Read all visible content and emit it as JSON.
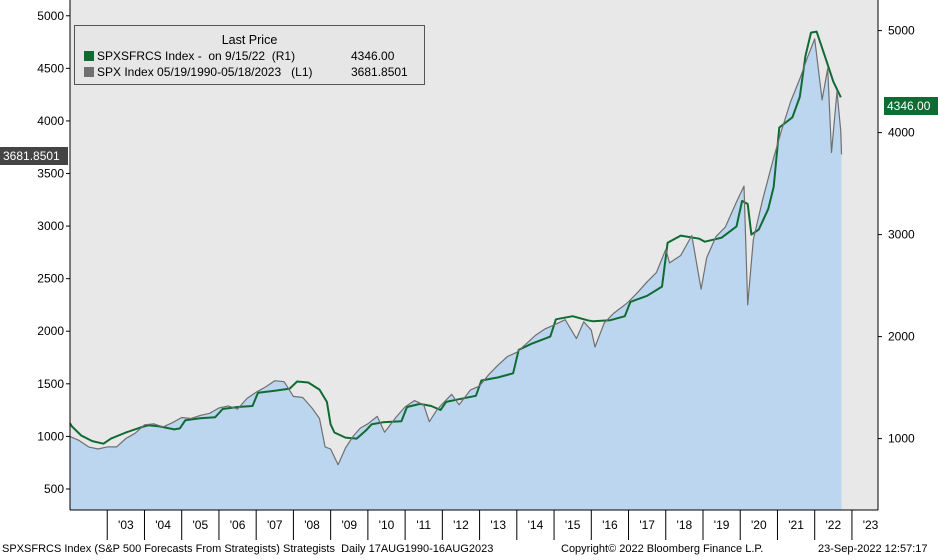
{
  "legend": {
    "title": "Last Price",
    "rows": [
      {
        "label": "SPXSFRCS Index -  on 9/15/22  (R1)",
        "value": "4346.00",
        "color": "#0f6b32"
      },
      {
        "label": "SPX Index 05/19/1990-05/18/2023   (L1)",
        "value": "3681.8501",
        "color": "#707070"
      }
    ]
  },
  "tags": {
    "left_last": "3681.8501",
    "right_last": "4346.00"
  },
  "footer": {
    "left": "SPXSFRCS Index (S&P 500 Forecasts From Strategists) Strategists  Daily 17AUG1990-16AUG2023",
    "center": "Copyright© 2022 Bloomberg Finance L.P.",
    "right": "23-Sep-2022 12:57:17"
  },
  "colors": {
    "plot_bg": "#e8e8e8",
    "area_fill": "#bcd6ef",
    "forecast_line": "#0f6b32",
    "spx_line": "#707070"
  },
  "chart_data": {
    "type": "line",
    "x_tick_labels": [
      "'03",
      "'04",
      "'05",
      "'06",
      "'07",
      "'08",
      "'09",
      "'10",
      "'11",
      "'12",
      "'13",
      "'14",
      "'15",
      "'16",
      "'17",
      "'18",
      "'19",
      "'20",
      "'21",
      "'22",
      "'23"
    ],
    "x_range": [
      2002.0,
      2023.7
    ],
    "left_axis": {
      "ticks": [
        500,
        1000,
        1500,
        2000,
        2500,
        3000,
        3500,
        4000,
        4500,
        5000
      ],
      "range": [
        300,
        5150
      ]
    },
    "right_axis": {
      "ticks": [
        1000,
        2000,
        3000,
        4000,
        5000
      ],
      "range": [
        300,
        5300
      ]
    },
    "series": [
      {
        "name": "SPXSFRCS Index",
        "axis": "right",
        "points": [
          [
            2002.0,
            1150
          ],
          [
            2002.05,
            1120
          ],
          [
            2002.3,
            1030
          ],
          [
            2002.6,
            975
          ],
          [
            2002.9,
            950
          ],
          [
            2003.1,
            1000
          ],
          [
            2003.5,
            1060
          ],
          [
            2003.9,
            1110
          ],
          [
            2004.1,
            1130
          ],
          [
            2004.4,
            1120
          ],
          [
            2004.8,
            1090
          ],
          [
            2004.95,
            1100
          ],
          [
            2005.1,
            1180
          ],
          [
            2005.5,
            1200
          ],
          [
            2005.9,
            1210
          ],
          [
            2006.1,
            1290
          ],
          [
            2006.5,
            1310
          ],
          [
            2006.9,
            1320
          ],
          [
            2007.05,
            1450
          ],
          [
            2007.5,
            1470
          ],
          [
            2007.9,
            1490
          ],
          [
            2008.1,
            1560
          ],
          [
            2008.4,
            1550
          ],
          [
            2008.7,
            1480
          ],
          [
            2008.9,
            1360
          ],
          [
            2009.0,
            1140
          ],
          [
            2009.1,
            1060
          ],
          [
            2009.4,
            1010
          ],
          [
            2009.7,
            1000
          ],
          [
            2009.95,
            1080
          ],
          [
            2010.1,
            1140
          ],
          [
            2010.4,
            1160
          ],
          [
            2010.9,
            1170
          ],
          [
            2011.05,
            1310
          ],
          [
            2011.4,
            1340
          ],
          [
            2011.7,
            1320
          ],
          [
            2011.95,
            1280
          ],
          [
            2012.1,
            1360
          ],
          [
            2012.5,
            1390
          ],
          [
            2012.9,
            1420
          ],
          [
            2013.05,
            1570
          ],
          [
            2013.5,
            1600
          ],
          [
            2013.9,
            1640
          ],
          [
            2014.05,
            1870
          ],
          [
            2014.4,
            1930
          ],
          [
            2014.9,
            2000
          ],
          [
            2015.05,
            2170
          ],
          [
            2015.5,
            2200
          ],
          [
            2015.9,
            2160
          ],
          [
            2016.05,
            2150
          ],
          [
            2016.5,
            2160
          ],
          [
            2016.9,
            2200
          ],
          [
            2017.05,
            2340
          ],
          [
            2017.5,
            2400
          ],
          [
            2017.9,
            2490
          ],
          [
            2018.05,
            2920
          ],
          [
            2018.4,
            2990
          ],
          [
            2018.9,
            2960
          ],
          [
            2019.05,
            2930
          ],
          [
            2019.5,
            2970
          ],
          [
            2019.9,
            3080
          ],
          [
            2020.05,
            3330
          ],
          [
            2020.2,
            3300
          ],
          [
            2020.3,
            3000
          ],
          [
            2020.5,
            3050
          ],
          [
            2020.75,
            3250
          ],
          [
            2020.9,
            3470
          ],
          [
            2021.05,
            4050
          ],
          [
            2021.4,
            4150
          ],
          [
            2021.6,
            4350
          ],
          [
            2021.75,
            4750
          ],
          [
            2021.9,
            4980
          ],
          [
            2022.05,
            4990
          ],
          [
            2022.3,
            4720
          ],
          [
            2022.5,
            4500
          ],
          [
            2022.7,
            4346
          ]
        ]
      },
      {
        "name": "SPX Index",
        "axis": "left",
        "points": [
          [
            2002.0,
            1000
          ],
          [
            2002.25,
            960
          ],
          [
            2002.5,
            900
          ],
          [
            2002.75,
            880
          ],
          [
            2003.0,
            900
          ],
          [
            2003.25,
            900
          ],
          [
            2003.5,
            980
          ],
          [
            2003.75,
            1030
          ],
          [
            2004.0,
            1110
          ],
          [
            2004.25,
            1120
          ],
          [
            2004.5,
            1090
          ],
          [
            2004.75,
            1130
          ],
          [
            2005.0,
            1180
          ],
          [
            2005.25,
            1170
          ],
          [
            2005.5,
            1200
          ],
          [
            2005.75,
            1220
          ],
          [
            2006.0,
            1270
          ],
          [
            2006.25,
            1290
          ],
          [
            2006.5,
            1260
          ],
          [
            2006.75,
            1360
          ],
          [
            2007.0,
            1420
          ],
          [
            2007.25,
            1470
          ],
          [
            2007.5,
            1530
          ],
          [
            2007.75,
            1520
          ],
          [
            2008.0,
            1380
          ],
          [
            2008.25,
            1370
          ],
          [
            2008.5,
            1270
          ],
          [
            2008.7,
            1170
          ],
          [
            2008.85,
            900
          ],
          [
            2009.0,
            880
          ],
          [
            2009.2,
            730
          ],
          [
            2009.4,
            890
          ],
          [
            2009.6,
            1000
          ],
          [
            2009.8,
            1080
          ],
          [
            2010.0,
            1120
          ],
          [
            2010.25,
            1190
          ],
          [
            2010.45,
            1040
          ],
          [
            2010.75,
            1180
          ],
          [
            2011.0,
            1280
          ],
          [
            2011.25,
            1340
          ],
          [
            2011.5,
            1300
          ],
          [
            2011.65,
            1140
          ],
          [
            2011.85,
            1250
          ],
          [
            2012.0,
            1310
          ],
          [
            2012.25,
            1400
          ],
          [
            2012.45,
            1300
          ],
          [
            2012.75,
            1440
          ],
          [
            2013.0,
            1480
          ],
          [
            2013.25,
            1590
          ],
          [
            2013.5,
            1680
          ],
          [
            2013.75,
            1760
          ],
          [
            2014.0,
            1800
          ],
          [
            2014.25,
            1880
          ],
          [
            2014.5,
            1960
          ],
          [
            2014.75,
            2020
          ],
          [
            2015.0,
            2060
          ],
          [
            2015.3,
            2110
          ],
          [
            2015.6,
            1930
          ],
          [
            2015.8,
            2090
          ],
          [
            2016.0,
            2010
          ],
          [
            2016.1,
            1850
          ],
          [
            2016.35,
            2080
          ],
          [
            2016.6,
            2170
          ],
          [
            2016.9,
            2250
          ],
          [
            2017.0,
            2280
          ],
          [
            2017.25,
            2370
          ],
          [
            2017.5,
            2470
          ],
          [
            2017.75,
            2560
          ],
          [
            2018.0,
            2780
          ],
          [
            2018.1,
            2650
          ],
          [
            2018.4,
            2720
          ],
          [
            2018.7,
            2910
          ],
          [
            2018.95,
            2400
          ],
          [
            2019.1,
            2700
          ],
          [
            2019.35,
            2900
          ],
          [
            2019.6,
            2990
          ],
          [
            2019.9,
            3230
          ],
          [
            2020.1,
            3380
          ],
          [
            2020.2,
            2250
          ],
          [
            2020.35,
            2870
          ],
          [
            2020.6,
            3250
          ],
          [
            2020.9,
            3650
          ],
          [
            2021.1,
            3900
          ],
          [
            2021.35,
            4180
          ],
          [
            2021.6,
            4400
          ],
          [
            2021.8,
            4600
          ],
          [
            2022.0,
            4780
          ],
          [
            2022.2,
            4200
          ],
          [
            2022.35,
            4500
          ],
          [
            2022.45,
            3700
          ],
          [
            2022.6,
            4280
          ],
          [
            2022.7,
            3900
          ],
          [
            2022.72,
            3682
          ]
        ]
      }
    ],
    "area": {
      "series": "SPX Index",
      "fill": "#bcd6ef"
    }
  }
}
